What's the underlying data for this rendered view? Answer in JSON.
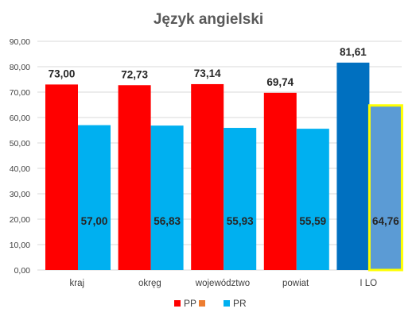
{
  "chart_data": {
    "type": "bar",
    "title": "Język angielski",
    "categories": [
      "kraj",
      "okręg",
      "województwo",
      "powiat",
      "I LO"
    ],
    "series": [
      {
        "name": "PP",
        "color": "#ff0000",
        "values": [
          73.0,
          72.73,
          73.14,
          69.74,
          81.61
        ],
        "labels": [
          "73,00",
          "72,73",
          "73,14",
          "69,74",
          "81,61"
        ]
      },
      {
        "name": "PR",
        "color": "#00b0f0",
        "values": [
          57.0,
          56.83,
          55.93,
          55.59,
          64.76
        ],
        "labels": [
          "57,00",
          "56,83",
          "55,93",
          "55,59",
          "64,76"
        ]
      }
    ],
    "highlight": {
      "category": "I LO",
      "pp_color": "#0070c0",
      "pr_color": "#5b9bd5",
      "pr_outline": "#ffff00"
    },
    "legend_extra": {
      "name": "",
      "color": "#ed7d31"
    },
    "ylim": [
      0,
      90
    ],
    "ystep": 10,
    "ytick_labels": [
      "0,00",
      "10,00",
      "20,00",
      "30,00",
      "40,00",
      "50,00",
      "60,00",
      "70,00",
      "80,00",
      "90,00"
    ],
    "grid": true,
    "legend_position": "bottom"
  }
}
